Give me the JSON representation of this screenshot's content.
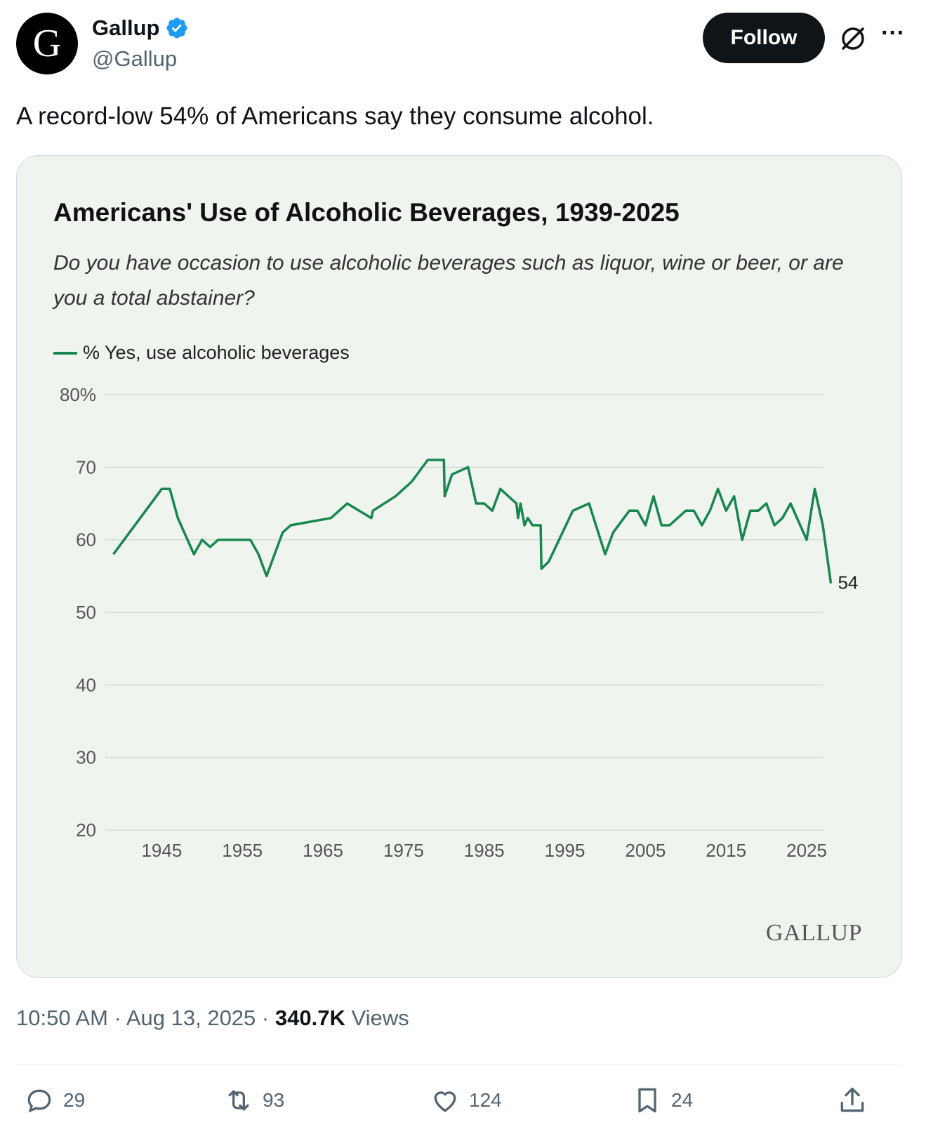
{
  "author": {
    "display_name": "Gallup",
    "handle": "@Gallup",
    "avatar_letter": "G",
    "verified": true
  },
  "follow_label": "Follow",
  "tweet_text": "A record-low 54% of Americans say they consume alcohol.",
  "chart_data": {
    "type": "line",
    "title": "Americans' Use of Alcoholic Beverages, 1939-2025",
    "subtitle": "Do you have occasion to use alcoholic beverages such as liquor, wine or beer, or are you a total abstainer?",
    "legend": "% Yes, use alcoholic beverages",
    "xlabel": "",
    "ylabel": "",
    "xlim": [
      1938,
      2027
    ],
    "ylim": [
      20,
      80
    ],
    "x_ticks": [
      1945,
      1955,
      1965,
      1975,
      1985,
      1995,
      2005,
      2015,
      2025
    ],
    "y_ticks": [
      {
        "value": 80,
        "label": "80%"
      },
      {
        "value": 70,
        "label": "70"
      },
      {
        "value": 60,
        "label": "60"
      },
      {
        "value": 50,
        "label": "50"
      },
      {
        "value": 40,
        "label": "40"
      },
      {
        "value": 30,
        "label": "30"
      },
      {
        "value": 20,
        "label": "20"
      }
    ],
    "series": [
      {
        "name": "% Yes, use alcoholic beverages",
        "color": "#18864f",
        "points": [
          [
            1939,
            58
          ],
          [
            1945,
            67
          ],
          [
            1946,
            67
          ],
          [
            1947,
            63
          ],
          [
            1949,
            58
          ],
          [
            1950,
            60
          ],
          [
            1951,
            59
          ],
          [
            1952,
            60
          ],
          [
            1956,
            60
          ],
          [
            1957,
            58
          ],
          [
            1958,
            55
          ],
          [
            1960,
            61
          ],
          [
            1961,
            62
          ],
          [
            1966,
            63
          ],
          [
            1968,
            65
          ],
          [
            1971,
            63
          ],
          [
            1971.2,
            64
          ],
          [
            1974,
            66
          ],
          [
            1976,
            68
          ],
          [
            1978,
            71
          ],
          [
            1980,
            71
          ],
          [
            1980.1,
            66
          ],
          [
            1981,
            69
          ],
          [
            1983,
            70
          ],
          [
            1984,
            65
          ],
          [
            1985,
            65
          ],
          [
            1986,
            64
          ],
          [
            1987,
            67
          ],
          [
            1989,
            65
          ],
          [
            1989.2,
            63
          ],
          [
            1989.5,
            65
          ],
          [
            1990,
            62
          ],
          [
            1990.4,
            63
          ],
          [
            1991,
            62
          ],
          [
            1992,
            62
          ],
          [
            1992.1,
            56
          ],
          [
            1993,
            57
          ],
          [
            1996,
            64
          ],
          [
            1998,
            65
          ],
          [
            2000,
            58
          ],
          [
            2001,
            61
          ],
          [
            2003,
            64
          ],
          [
            2004,
            64
          ],
          [
            2005,
            62
          ],
          [
            2006,
            66
          ],
          [
            2007,
            62
          ],
          [
            2008,
            62
          ],
          [
            2010,
            64
          ],
          [
            2011,
            64
          ],
          [
            2012,
            62
          ],
          [
            2013,
            64
          ],
          [
            2014,
            67
          ],
          [
            2015,
            64
          ],
          [
            2016,
            66
          ],
          [
            2017,
            60
          ],
          [
            2018,
            64
          ],
          [
            2019,
            64
          ],
          [
            2020,
            65
          ],
          [
            2021,
            62
          ],
          [
            2022,
            63
          ],
          [
            2023,
            65
          ],
          [
            2025,
            60
          ],
          [
            2026,
            67
          ],
          [
            2027,
            62
          ],
          [
            2028,
            54
          ]
        ]
      }
    ],
    "end_label": "54",
    "source_logo": "GALLUP"
  },
  "meta": {
    "time": "10:50 AM",
    "separator": "·",
    "date": "Aug 13, 2025",
    "views_count": "340.7K",
    "views_label": "Views"
  },
  "actions": {
    "replies": "29",
    "reposts": "93",
    "likes": "124",
    "bookmarks": "24"
  }
}
